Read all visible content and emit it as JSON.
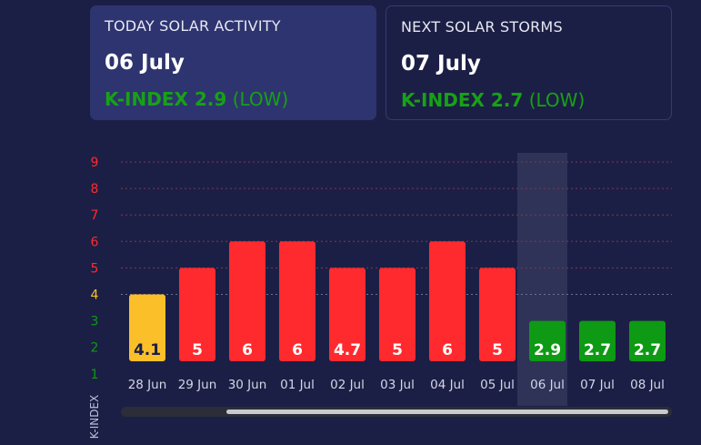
{
  "cards": {
    "today": {
      "title": "TODAY SOLAR ACTIVITY",
      "date": "06 July",
      "kindex_label": "K-INDEX 2.9",
      "level": "(LOW)"
    },
    "next": {
      "title": "NEXT SOLAR STORMS",
      "date": "07 July",
      "kindex_label": "K-INDEX 2.7",
      "level": "(LOW)"
    }
  },
  "colors": {
    "background": "#1c1f45",
    "low": "#0e9a14",
    "moderate": "#fbbf2a",
    "high": "#ff2a2e",
    "grid_storm": "#7a3a4e",
    "grid_moderate": "#6e7192",
    "highlight": "#2f3358"
  },
  "chart_data": {
    "type": "bar",
    "ylabel": "K-INDEX",
    "ylim": [
      1,
      9
    ],
    "yticks": [
      1,
      2,
      3,
      4,
      5,
      6,
      7,
      8,
      9
    ],
    "categories": [
      "28 Jun",
      "29 Jun",
      "30 Jun",
      "01 Jul",
      "02 Jul",
      "03 Jul",
      "04 Jul",
      "05 Jul",
      "06 Jul",
      "07 Jul",
      "08 Jul"
    ],
    "values": [
      4.1,
      5,
      6,
      6,
      4.7,
      5,
      6,
      5,
      2.9,
      2.7,
      2.7
    ],
    "display_heights": [
      4,
      5,
      6,
      6,
      5,
      5,
      6,
      5,
      3,
      3,
      3
    ],
    "value_labels": [
      "4.1",
      "5",
      "6",
      "6",
      "4.7",
      "5",
      "6",
      "5",
      "2.9",
      "2.7",
      "2.7"
    ],
    "bar_levels": [
      "moderate",
      "high",
      "high",
      "high",
      "high",
      "high",
      "high",
      "high",
      "low",
      "low",
      "low"
    ],
    "highlighted_category": "06 Jul",
    "grid": "dashed"
  }
}
